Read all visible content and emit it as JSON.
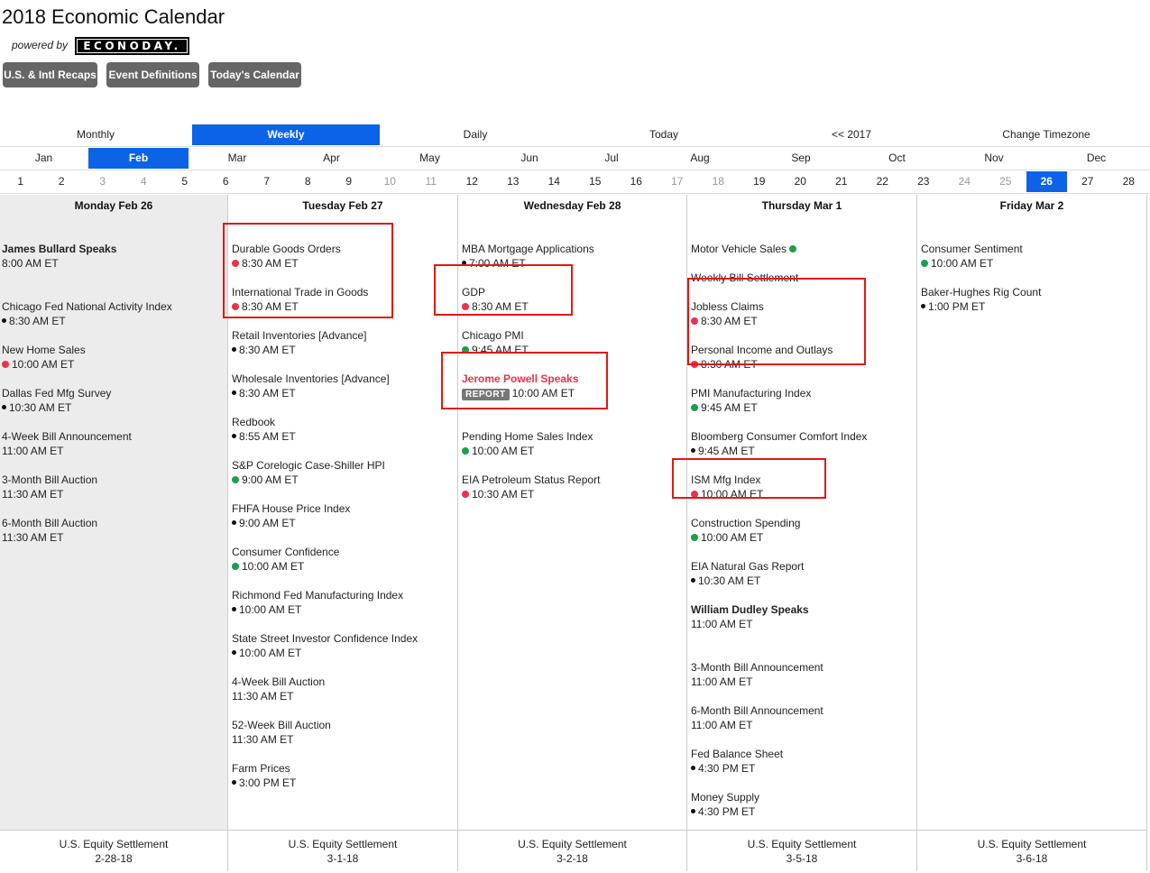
{
  "header": {
    "title": "2018 Economic Calendar",
    "powered_by": "powered by",
    "logo_text": "ECONODAY."
  },
  "toolbar": {
    "recaps_label": "U.S. & Intl Recaps",
    "definitions_label": "Event Definitions",
    "today_label": "Today's Calendar"
  },
  "views": {
    "monthly": "Monthly",
    "weekly": "Weekly",
    "daily": "Daily",
    "today": "Today",
    "prev_year": "<< 2017",
    "timezone": "Change Timezone",
    "active": "Weekly"
  },
  "months": [
    "Jan",
    "Feb",
    "Mar",
    "Apr",
    "May",
    "Jun",
    "Jul",
    "Aug",
    "Sep",
    "Oct",
    "Nov",
    "Dec"
  ],
  "active_month": "Feb",
  "days": [
    "1",
    "2",
    "3",
    "4",
    "5",
    "6",
    "7",
    "8",
    "9",
    "10",
    "11",
    "12",
    "13",
    "14",
    "15",
    "16",
    "17",
    "18",
    "19",
    "20",
    "21",
    "22",
    "23",
    "24",
    "25",
    "26",
    "27",
    "28"
  ],
  "active_day": "26",
  "accent_color": "#0d63e8",
  "columns": [
    {
      "header": "Monday Feb 26",
      "events": [
        {
          "name": "James Bullard Speaks",
          "time": "8:00 AM ET",
          "dot": "none",
          "style": "bold"
        },
        {
          "name": "Chicago Fed National Activity Index",
          "time": "8:30 AM ET",
          "dot": "black"
        },
        {
          "name": "New Home Sales",
          "time": "10:00 AM ET",
          "dot": "red"
        },
        {
          "name": "Dallas Fed Mfg Survey",
          "time": "10:30 AM ET",
          "dot": "black"
        },
        {
          "name": "4-Week Bill Announcement",
          "time": "11:00 AM ET",
          "dot": "none"
        },
        {
          "name": "3-Month Bill Auction",
          "time": "11:30 AM ET",
          "dot": "none"
        },
        {
          "name": "6-Month Bill Auction",
          "time": "11:30 AM ET",
          "dot": "none"
        }
      ],
      "footer_line1": "U.S. Equity Settlement",
      "footer_line2": "2-28-18"
    },
    {
      "header": "Tuesday Feb 27",
      "events": [
        {
          "name": "Durable Goods Orders",
          "time": "8:30 AM ET",
          "dot": "red"
        },
        {
          "name": "International Trade in Goods",
          "time": "8:30 AM ET",
          "dot": "red"
        },
        {
          "name": "Retail Inventories [Advance]",
          "time": "8:30 AM ET",
          "dot": "black"
        },
        {
          "name": "Wholesale Inventories [Advance]",
          "time": "8:30 AM ET",
          "dot": "black"
        },
        {
          "name": "Redbook",
          "time": "8:55 AM ET",
          "dot": "black"
        },
        {
          "name": "S&P Corelogic Case-Shiller HPI",
          "time": "9:00 AM ET",
          "dot": "green"
        },
        {
          "name": "FHFA House Price Index",
          "time": "9:00 AM ET",
          "dot": "black"
        },
        {
          "name": "Consumer Confidence",
          "time": "10:00 AM ET",
          "dot": "green"
        },
        {
          "name": "Richmond Fed Manufacturing Index",
          "time": "10:00 AM ET",
          "dot": "black"
        },
        {
          "name": "State Street Investor Confidence Index",
          "time": "10:00 AM ET",
          "dot": "black"
        },
        {
          "name": "4-Week Bill Auction",
          "time": "11:30 AM ET",
          "dot": "none"
        },
        {
          "name": "52-Week Bill Auction",
          "time": "11:30 AM ET",
          "dot": "none"
        },
        {
          "name": "Farm Prices",
          "time": "3:00 PM ET",
          "dot": "black"
        }
      ],
      "footer_line1": "U.S. Equity Settlement",
      "footer_line2": "3-1-18"
    },
    {
      "header": "Wednesday Feb 28",
      "events": [
        {
          "name": "MBA Mortgage Applications",
          "time": "7:00 AM ET",
          "dot": "black"
        },
        {
          "name": "GDP",
          "time": "8:30 AM ET",
          "dot": "red"
        },
        {
          "name": "Chicago PMI",
          "time": "9:45 AM ET",
          "dot": "green"
        },
        {
          "name": "Jerome Powell Speaks",
          "time": "10:00 AM ET",
          "dot": "none",
          "style": "hot",
          "badge": "REPORT"
        },
        {
          "name": "Pending Home Sales Index",
          "time": "10:00 AM ET",
          "dot": "green"
        },
        {
          "name": "EIA Petroleum Status Report",
          "time": "10:30 AM ET",
          "dot": "red"
        }
      ],
      "footer_line1": "U.S. Equity Settlement",
      "footer_line2": "3-2-18"
    },
    {
      "header": "Thursday Mar 1",
      "events": [
        {
          "name": "Motor Vehicle Sales",
          "time": "",
          "dot": "green-inline"
        },
        {
          "name": "Weekly Bill Settlement",
          "time": "",
          "dot": "none"
        },
        {
          "name": "Jobless Claims",
          "time": "8:30 AM ET",
          "dot": "red"
        },
        {
          "name": "Personal Income and Outlays",
          "time": "8:30 AM ET",
          "dot": "red"
        },
        {
          "name": "PMI Manufacturing Index",
          "time": "9:45 AM ET",
          "dot": "green"
        },
        {
          "name": "Bloomberg Consumer Comfort Index",
          "time": "9:45 AM ET",
          "dot": "black"
        },
        {
          "name": "ISM Mfg Index",
          "time": "10:00 AM ET",
          "dot": "red"
        },
        {
          "name": "Construction Spending",
          "time": "10:00 AM ET",
          "dot": "green"
        },
        {
          "name": "EIA Natural Gas Report",
          "time": "10:30 AM ET",
          "dot": "black"
        },
        {
          "name": "William Dudley Speaks",
          "time": "11:00 AM ET",
          "dot": "none",
          "style": "bold"
        },
        {
          "name": "3-Month Bill Announcement",
          "time": "11:00 AM ET",
          "dot": "none"
        },
        {
          "name": "6-Month Bill Announcement",
          "time": "11:00 AM ET",
          "dot": "none"
        },
        {
          "name": "Fed Balance Sheet",
          "time": "4:30 PM ET",
          "dot": "black"
        },
        {
          "name": "Money Supply",
          "time": "4:30 PM ET",
          "dot": "black"
        }
      ],
      "footer_line1": "U.S. Equity Settlement",
      "footer_line2": "3-5-18"
    },
    {
      "header": "Friday Mar 2",
      "events": [
        {
          "name": "Consumer Sentiment",
          "time": "10:00 AM ET",
          "dot": "green"
        },
        {
          "name": "Baker-Hughes Rig Count",
          "time": "1:00 PM ET",
          "dot": "black"
        }
      ],
      "footer_line1": "U.S. Equity Settlement",
      "footer_line2": "3-6-18"
    }
  ]
}
